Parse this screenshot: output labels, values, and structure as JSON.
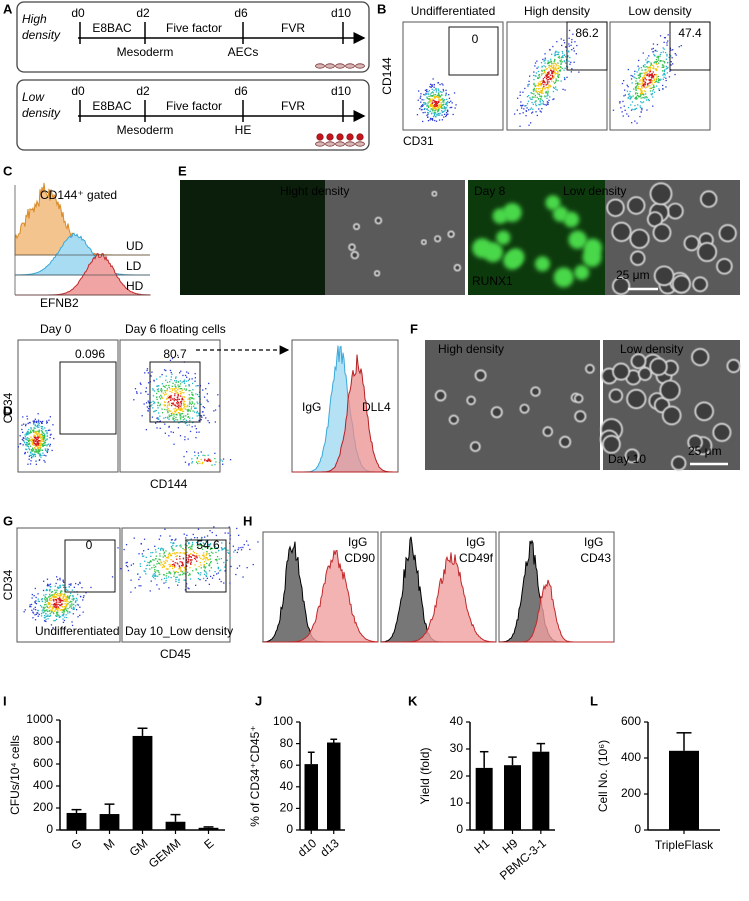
{
  "panel_letters": [
    "A",
    "B",
    "C",
    "D",
    "E",
    "F",
    "G",
    "H",
    "I",
    "J",
    "K",
    "L"
  ],
  "panel_a": {
    "high": {
      "condition": [
        "High",
        "density"
      ],
      "days": [
        "d0",
        "d2",
        "d6",
        "d10"
      ],
      "media": [
        "E8BAC",
        "Five factor",
        "FVR"
      ],
      "stages": [
        "Mesoderm",
        "AECs"
      ]
    },
    "low": {
      "condition": [
        "Low",
        "density"
      ],
      "days": [
        "d0",
        "d2",
        "d6",
        "d10"
      ],
      "media": [
        "E8BAC",
        "Five factor",
        "FVR"
      ],
      "stages": [
        "Mesoderm",
        "HE"
      ]
    }
  },
  "panel_b": {
    "plots": [
      {
        "title": "Undifferentiated",
        "gate": 0
      },
      {
        "title": "High density",
        "gate": 86.2
      },
      {
        "title": "Low density",
        "gate": 47.4
      }
    ],
    "y_label": "CD144",
    "x_label": "CD31"
  },
  "panel_c": {
    "title": "CD144⁺ gated",
    "tracks": [
      "UD",
      "LD",
      "HD"
    ],
    "x_label": "EFNB2"
  },
  "panel_d": {
    "plots": [
      {
        "title": "Day 0",
        "gate": 0.096
      },
      {
        "title": "Day 6 floating cells",
        "gate": 80.7
      }
    ],
    "histogram": [
      "IgG",
      "DLL4"
    ],
    "y_label": "CD34",
    "x_label": "CD144"
  },
  "panel_e": {
    "high_label": "Hight density",
    "day": "Day 8",
    "low_label": "Low density",
    "stain": "RUNX1",
    "scale": "25 μm"
  },
  "panel_f": {
    "high_label": "High density",
    "low_label": "Low density",
    "day": "Day 10",
    "scale": "25 μm"
  },
  "panel_g": {
    "plots": [
      {
        "gate": 0,
        "label": "Undifferentiated"
      },
      {
        "gate": 54.6,
        "label": "Day 10_Low density"
      }
    ],
    "y_label": "CD34",
    "x_label": "CD45"
  },
  "panel_h": {
    "plots": [
      {
        "control": "IgG",
        "marker": "CD90"
      },
      {
        "control": "IgG",
        "marker": "CD49f"
      },
      {
        "control": "IgG",
        "marker": "CD43"
      }
    ]
  },
  "chart_data": [
    {
      "type": "bar",
      "ylabel": "CFUs/10⁴ cells",
      "categories": [
        "G",
        "M",
        "GM",
        "GEMM",
        "E"
      ],
      "values": [
        155,
        145,
        855,
        75,
        20
      ],
      "errors": [
        30,
        90,
        70,
        65,
        8
      ],
      "color": "#000000",
      "ylim": [
        0,
        1000
      ],
      "yticks": [
        0,
        200,
        400,
        600,
        800,
        1000
      ]
    },
    {
      "type": "bar",
      "ylabel": "% of CD34⁺CD45⁺",
      "categories": [
        "d10",
        "d13"
      ],
      "values": [
        61,
        81
      ],
      "errors": [
        11,
        3
      ],
      "color": "#000000",
      "ylim": [
        0,
        100
      ],
      "yticks": [
        0,
        20,
        40,
        60,
        80,
        100
      ]
    },
    {
      "type": "bar",
      "ylabel": "Yield (fold)",
      "categories": [
        "H1",
        "H9",
        "PBMC-3-1"
      ],
      "values": [
        23,
        24,
        29
      ],
      "errors": [
        6,
        3,
        3
      ],
      "color": "#000000",
      "ylim": [
        0,
        40
      ],
      "yticks": [
        0,
        10,
        20,
        30,
        40
      ]
    },
    {
      "type": "bar",
      "ylabel": "Cell No. (10⁶)",
      "categories": [
        "TripleFlask"
      ],
      "values": [
        440
      ],
      "errors": [
        100
      ],
      "color": "#000000",
      "ylim": [
        0,
        600
      ],
      "yticks": [
        0,
        200,
        400,
        600
      ]
    }
  ]
}
